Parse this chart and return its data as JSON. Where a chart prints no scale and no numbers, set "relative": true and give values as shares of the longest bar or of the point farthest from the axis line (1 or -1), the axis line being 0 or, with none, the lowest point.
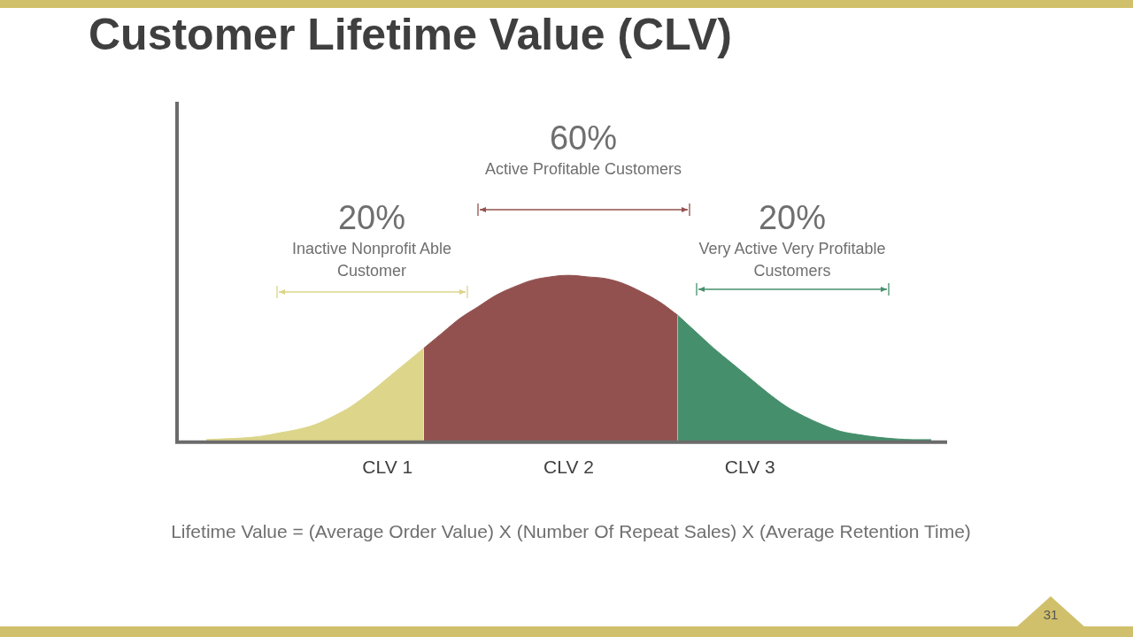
{
  "chart_data": {
    "type": "area",
    "title": "Customer Lifetime Value (CLV)",
    "relative": true,
    "legend": false,
    "grid": false,
    "categories": [
      null,
      null,
      null,
      null,
      null,
      null,
      null,
      null,
      null,
      null,
      "CLV 1",
      null,
      null,
      null,
      null,
      null,
      null,
      null,
      null,
      null,
      "CLV 2",
      null,
      null,
      null,
      null,
      null,
      null,
      null,
      null,
      null,
      "CLV 3",
      null,
      null,
      null,
      null,
      null,
      null,
      null,
      null,
      null,
      null
    ],
    "series": [
      {
        "color": "#dcd58a",
        "values": [
          0.01,
          0.015,
          0.02,
          0.03,
          0.05,
          0.07,
          0.1,
          0.15,
          0.21,
          0.29,
          0.38,
          0.47,
          0.56,
          null,
          null,
          null,
          null,
          null,
          null,
          null,
          null,
          null,
          null,
          null,
          null,
          null,
          null,
          null,
          null,
          null,
          null,
          null,
          null,
          null,
          null,
          null,
          null,
          null,
          null,
          null,
          null
        ]
      },
      {
        "color": "#92514f",
        "values": [
          null,
          null,
          null,
          null,
          null,
          null,
          null,
          null,
          null,
          null,
          null,
          null,
          0.56,
          0.65,
          0.74,
          0.81,
          0.88,
          0.93,
          0.97,
          0.99,
          1,
          0.99,
          0.98,
          0.95,
          0.9,
          0.84,
          0.76,
          null,
          null,
          null,
          null,
          null,
          null,
          null,
          null,
          null,
          null,
          null,
          null,
          null,
          null
        ]
      },
      {
        "color": "#468f6c",
        "values": [
          null,
          null,
          null,
          null,
          null,
          null,
          null,
          null,
          null,
          null,
          null,
          null,
          null,
          null,
          null,
          null,
          null,
          null,
          null,
          null,
          null,
          null,
          null,
          null,
          null,
          null,
          0.76,
          0.66,
          0.56,
          0.47,
          0.38,
          0.29,
          0.21,
          0.15,
          0.1,
          0.06,
          0.04,
          0.025,
          0.015,
          0.01,
          0.01
        ]
      }
    ],
    "annotations": [
      "20%",
      "Inactive Nonprofit Able Customer",
      "60%",
      "Active Profitable Customers",
      "20%",
      "Very Active Very Profitable Customers",
      "Lifetime Value = (Average Order Value) X (Number Of Repeat Sales) X (Average Retention Time)",
      "31"
    ]
  }
}
